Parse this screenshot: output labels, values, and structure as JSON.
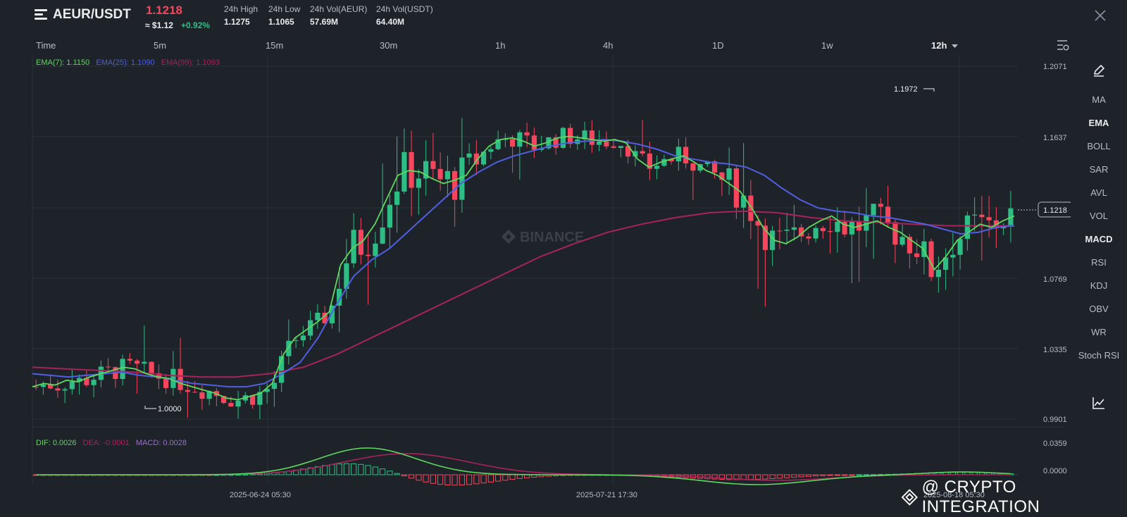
{
  "header": {
    "pair": "AEUR/USDT",
    "price": "1.1218",
    "usd_price": "≈ $1.12",
    "change": "+0.92%",
    "stats": [
      {
        "label": "24h High",
        "value": "1.1275"
      },
      {
        "label": "24h Low",
        "value": "1.1065"
      },
      {
        "label": "24h Vol(AEUR)",
        "value": "57.69M"
      },
      {
        "label": "24h Vol(USDT)",
        "value": "64.40M"
      }
    ]
  },
  "timeframes": [
    "Time",
    "5m",
    "15m",
    "30m",
    "1h",
    "4h",
    "1D",
    "1w",
    "12h"
  ],
  "active_timeframe": "12h",
  "indicators": [
    "MA",
    "EMA",
    "BOLL",
    "SAR",
    "AVL",
    "VOL",
    "MACD",
    "RSI",
    "KDJ",
    "OBV",
    "WR",
    "Stoch RSI"
  ],
  "active_indicators": [
    "EMA",
    "MACD"
  ],
  "ema_legend": {
    "ema7": "EMA(7): 1.1150",
    "ema25": "EMA(25): 1.1090",
    "ema99": "EMA(99): 1.1093"
  },
  "macd_legend": {
    "dif": "DIF: 0.0026",
    "dea": "DEA: -0.0001",
    "macd": "MACD: 0.0028"
  },
  "watermark_center": "BINANCE",
  "watermark_corner": "@ CRYPTO INTEGRATION",
  "colors": {
    "up": "#2ebd85",
    "down": "#f6465d",
    "ema7": "#5ed85e",
    "ema25": "#4f5fe0",
    "ema99": "#a8235c",
    "background": "#1e2329"
  },
  "chart_data": [
    {
      "type": "candlestick",
      "price_axis_ticks": [
        "1.2071",
        "1.1637",
        "1.1203",
        "1.0769",
        "1.0335",
        "0.9901"
      ],
      "ylim": [
        0.9901,
        1.2071
      ],
      "time_axis_labels": [
        "2025-06-24 05:30",
        "2025-07-21 17:30",
        "2025-08-18 05:30"
      ],
      "current_price_label": "1.1218",
      "high_marker": "1.1972",
      "low_marker": "1.0000",
      "candle_count": 136,
      "ema7_path": [
        1.01,
        1.012,
        1.011,
        1.014,
        1.013,
        1.016,
        1.018,
        1.02,
        1.022,
        1.021,
        1.018,
        1.016,
        1.015,
        1.012,
        1.01,
        1.008,
        1.006,
        1.003,
        1.002,
        1.004,
        1.006,
        1.012,
        1.03,
        1.04,
        1.045,
        1.05,
        1.056,
        1.085,
        1.095,
        1.1,
        1.11,
        1.125,
        1.14,
        1.143,
        1.142,
        1.138,
        1.135,
        1.137,
        1.14,
        1.15,
        1.158,
        1.162,
        1.163,
        1.161,
        1.158,
        1.16,
        1.163,
        1.164,
        1.163,
        1.162,
        1.161,
        1.162,
        1.16,
        1.15,
        1.145,
        1.148,
        1.15,
        1.152,
        1.148,
        1.143,
        1.14,
        1.135,
        1.13,
        1.12,
        1.108,
        1.1,
        1.098,
        1.102,
        1.108,
        1.112,
        1.115,
        1.11,
        1.108,
        1.11,
        1.112,
        1.108,
        1.105,
        1.1,
        1.095,
        1.082,
        1.09,
        1.1,
        1.105,
        1.11,
        1.108,
        1.112,
        1.115
      ],
      "ema25_path": [
        1.018,
        1.017,
        1.016,
        1.017,
        1.018,
        1.019,
        1.017,
        1.016,
        1.014,
        1.012,
        1.011,
        1.01,
        1.01,
        1.012,
        1.018,
        1.025,
        1.04,
        1.06,
        1.078,
        1.088,
        1.095,
        1.105,
        1.115,
        1.125,
        1.135,
        1.142,
        1.148,
        1.152,
        1.155,
        1.158,
        1.16,
        1.161,
        1.162,
        1.161,
        1.159,
        1.156,
        1.152,
        1.15,
        1.148,
        1.147,
        1.145,
        1.14,
        1.132,
        1.125,
        1.12,
        1.118,
        1.117,
        1.115,
        1.114,
        1.112,
        1.11,
        1.107,
        1.104,
        1.105,
        1.108,
        1.109
      ],
      "ema99_path": [
        1.022,
        1.021,
        1.02,
        1.019,
        1.017,
        1.016,
        1.016,
        1.018,
        1.022,
        1.03,
        1.04,
        1.05,
        1.06,
        1.07,
        1.08,
        1.09,
        1.098,
        1.105,
        1.11,
        1.114,
        1.117,
        1.118,
        1.117,
        1.114,
        1.112,
        1.111,
        1.11,
        1.109,
        1.109,
        1.109
      ]
    },
    {
      "type": "line",
      "name_keys": [
        "DIF",
        "DEA",
        "MACD"
      ],
      "y_axis_ticks": [
        "0.0359",
        "0.0000"
      ]
    }
  ]
}
